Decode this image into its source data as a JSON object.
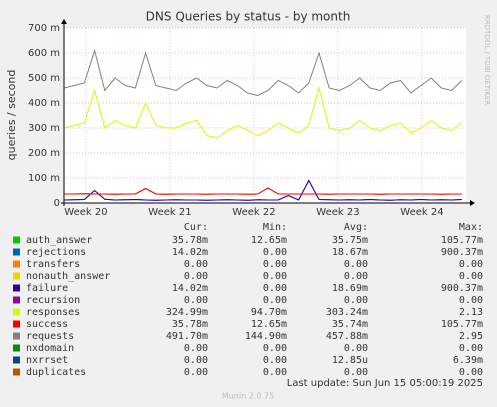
{
  "chart_data": {
    "type": "line",
    "title": "DNS Queries by status - by month",
    "y_label": "queries / second",
    "watermark": "RRDTOOL / TOBI OETIKER",
    "ylim": [
      0,
      0.7
    ],
    "yticks": [
      0,
      {
        "value": 0.1,
        "label": "100 m"
      },
      {
        "value": 0.2,
        "label": "200 m"
      },
      {
        "value": 0.3,
        "label": "300 m"
      },
      {
        "value": 0.4,
        "label": "400 m"
      },
      {
        "value": 0.5,
        "label": "500 m"
      },
      {
        "value": 0.6,
        "label": "600 m"
      },
      {
        "value": 0.7,
        "label": "700 m"
      }
    ],
    "xlim": [
      0,
      33.5
    ],
    "xticks": [
      {
        "value": 1.83,
        "label": "Week 20"
      },
      {
        "value": 8.83,
        "label": "Week 21"
      },
      {
        "value": 15.83,
        "label": "Week 22"
      },
      {
        "value": 22.83,
        "label": "Week 23"
      },
      {
        "value": 29.83,
        "label": "Week 24"
      }
    ],
    "grid": true,
    "x": [
      0,
      0.85,
      1.7,
      2.55,
      3.4,
      4.25,
      5.1,
      5.95,
      6.8,
      7.65,
      8.5,
      9.35,
      10.2,
      11.05,
      11.9,
      12.75,
      13.6,
      14.45,
      15.3,
      16.15,
      17,
      17.85,
      18.7,
      19.55,
      20.4,
      21.25,
      22.1,
      22.95,
      23.8,
      24.65,
      25.5,
      26.35,
      27.2,
      28.05,
      28.9,
      29.75,
      30.6,
      31.45,
      32.3,
      33.15
    ],
    "legend_headers": [
      "Cur:",
      "Min:",
      "Avg:",
      "Max:"
    ],
    "series": [
      {
        "name": "auth_answer",
        "color": "#00cc00",
        "cur": "35.78m",
        "min": "12.65m",
        "avg": "35.75m",
        "max": "105.77m",
        "values": [
          0.036,
          0.036,
          0.037,
          0.036,
          0.036,
          0.035,
          0.036,
          0.036,
          0.058,
          0.036,
          0.035,
          0.036,
          0.036,
          0.036,
          0.035,
          0.036,
          0.036,
          0.036,
          0.035,
          0.036,
          0.06,
          0.036,
          0.036,
          0.036,
          0.036,
          0.036,
          0.035,
          0.036,
          0.036,
          0.036,
          0.036,
          0.035,
          0.036,
          0.036,
          0.036,
          0.036,
          0.036,
          0.035,
          0.036,
          0.036
        ]
      },
      {
        "name": "rejections",
        "color": "#0066b3",
        "cur": "14.02m",
        "min": "0.00",
        "avg": "18.67m",
        "max": "900.37m",
        "values": [
          0.012,
          0.013,
          0.014,
          0.05,
          0.015,
          0.012,
          0.013,
          0.014,
          0.012,
          0.011,
          0.012,
          0.013,
          0.012,
          0.012,
          0.011,
          0.012,
          0.013,
          0.012,
          0.011,
          0.013,
          0.012,
          0.012,
          0.03,
          0.012,
          0.09,
          0.014,
          0.013,
          0.012,
          0.013,
          0.012,
          0.014,
          0.012,
          0.011,
          0.013,
          0.012,
          0.014,
          0.012,
          0.013,
          0.012,
          0.014
        ]
      },
      {
        "name": "transfers",
        "color": "#ff8000",
        "cur": "0.00",
        "min": "0.00",
        "avg": "0.00",
        "max": "0.00"
      },
      {
        "name": "nonauth_answer",
        "color": "#ffcc00",
        "cur": "0.00",
        "min": "0.00",
        "avg": "0.00",
        "max": "0.00"
      },
      {
        "name": "failure",
        "color": "#330099",
        "cur": "14.02m",
        "min": "0.00",
        "avg": "18.69m",
        "max": "900.37m",
        "values": [
          0.012,
          0.013,
          0.014,
          0.05,
          0.015,
          0.012,
          0.013,
          0.014,
          0.012,
          0.011,
          0.012,
          0.013,
          0.012,
          0.012,
          0.011,
          0.012,
          0.013,
          0.012,
          0.011,
          0.013,
          0.012,
          0.012,
          0.03,
          0.012,
          0.09,
          0.014,
          0.013,
          0.012,
          0.013,
          0.012,
          0.014,
          0.012,
          0.011,
          0.013,
          0.012,
          0.014,
          0.012,
          0.013,
          0.012,
          0.014
        ]
      },
      {
        "name": "recursion",
        "color": "#990099",
        "cur": "0.00",
        "min": "0.00",
        "avg": "0.00",
        "max": "0.00"
      },
      {
        "name": "responses",
        "color": "#ccff00",
        "cur": "324.99m",
        "min": "94.70m",
        "avg": "303.24m",
        "max": "2.13",
        "values": [
          0.3,
          0.31,
          0.32,
          0.45,
          0.3,
          0.33,
          0.31,
          0.3,
          0.4,
          0.31,
          0.3,
          0.3,
          0.32,
          0.33,
          0.27,
          0.26,
          0.29,
          0.31,
          0.29,
          0.27,
          0.29,
          0.32,
          0.3,
          0.28,
          0.31,
          0.46,
          0.3,
          0.29,
          0.3,
          0.33,
          0.3,
          0.29,
          0.31,
          0.32,
          0.28,
          0.3,
          0.33,
          0.3,
          0.29,
          0.32
        ]
      },
      {
        "name": "success",
        "color": "#ff0000",
        "cur": "35.78m",
        "min": "12.65m",
        "avg": "35.74m",
        "max": "105.77m",
        "values": [
          0.036,
          0.036,
          0.037,
          0.036,
          0.036,
          0.035,
          0.036,
          0.036,
          0.058,
          0.036,
          0.035,
          0.036,
          0.036,
          0.036,
          0.035,
          0.036,
          0.036,
          0.036,
          0.035,
          0.036,
          0.06,
          0.036,
          0.036,
          0.036,
          0.036,
          0.036,
          0.035,
          0.036,
          0.036,
          0.036,
          0.036,
          0.035,
          0.036,
          0.036,
          0.036,
          0.036,
          0.036,
          0.035,
          0.036,
          0.036
        ]
      },
      {
        "name": "requests",
        "color": "#808080",
        "cur": "491.70m",
        "min": "144.90m",
        "avg": "457.88m",
        "max": "2.95",
        "values": [
          0.46,
          0.47,
          0.48,
          0.61,
          0.45,
          0.5,
          0.47,
          0.46,
          0.6,
          0.47,
          0.46,
          0.45,
          0.48,
          0.5,
          0.47,
          0.46,
          0.49,
          0.47,
          0.44,
          0.43,
          0.45,
          0.49,
          0.47,
          0.44,
          0.48,
          0.6,
          0.46,
          0.45,
          0.47,
          0.5,
          0.46,
          0.45,
          0.48,
          0.49,
          0.44,
          0.47,
          0.5,
          0.46,
          0.45,
          0.49
        ]
      },
      {
        "name": "nxdomain",
        "color": "#008f00",
        "cur": "0.00",
        "min": "0.00",
        "avg": "0.00",
        "max": "0.00"
      },
      {
        "name": "nxrrset",
        "color": "#00487d",
        "cur": "0.00",
        "min": "0.00",
        "avg": "12.85u",
        "max": "6.39m"
      },
      {
        "name": "duplicates",
        "color": "#b35a00",
        "cur": "0.00",
        "min": "0.00",
        "avg": "0.00",
        "max": "0.00"
      }
    ],
    "last_update": "Last update: Sun Jun 15 05:00:19 2025",
    "credit": "Munin 2.0.75"
  }
}
